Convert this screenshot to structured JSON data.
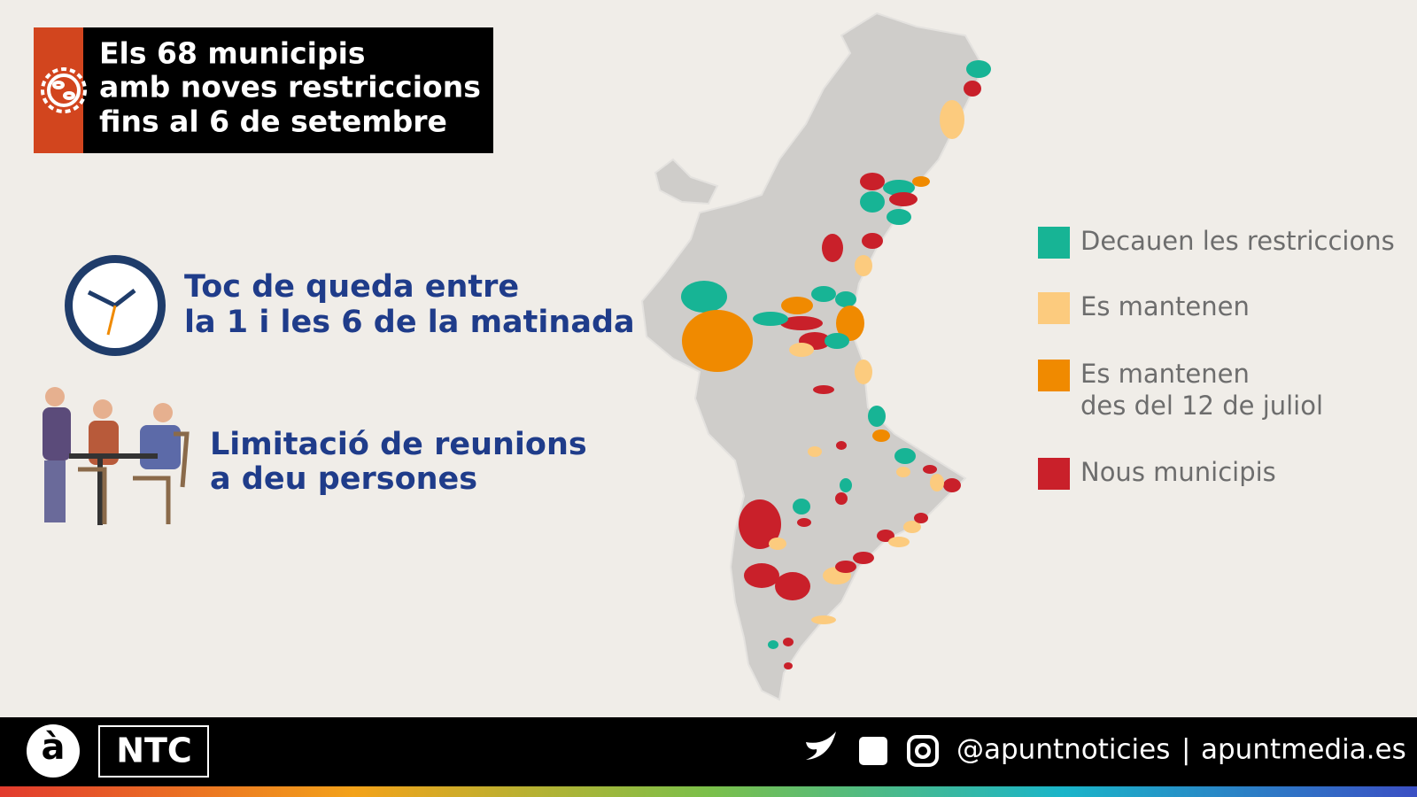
{
  "header": {
    "title_lines": [
      "Els 68 municipis",
      "amb noves restriccions",
      "fins al 6 de setembre"
    ]
  },
  "measures": [
    {
      "lines": [
        "Toc de queda entre",
        "la 1 i les 6 de la matinada"
      ]
    },
    {
      "lines": [
        "Limitació de reunions",
        "a deu persones"
      ]
    }
  ],
  "legend": [
    {
      "label_lines": [
        "Decauen les restriccions"
      ],
      "color": "#17b495"
    },
    {
      "label_lines": [
        "Es mantenen"
      ],
      "color": "#fccb7e"
    },
    {
      "label_lines": [
        "Es mantenen",
        "des del 12 de juliol"
      ],
      "color": "#f08a00"
    },
    {
      "label_lines": [
        "Nous municipis"
      ],
      "color": "#c9202a"
    }
  ],
  "footer": {
    "logo_mark": "à",
    "logo": "NTC",
    "handle": "@apuntnoticies",
    "separator": "|",
    "site": "apuntmedia.es"
  }
}
